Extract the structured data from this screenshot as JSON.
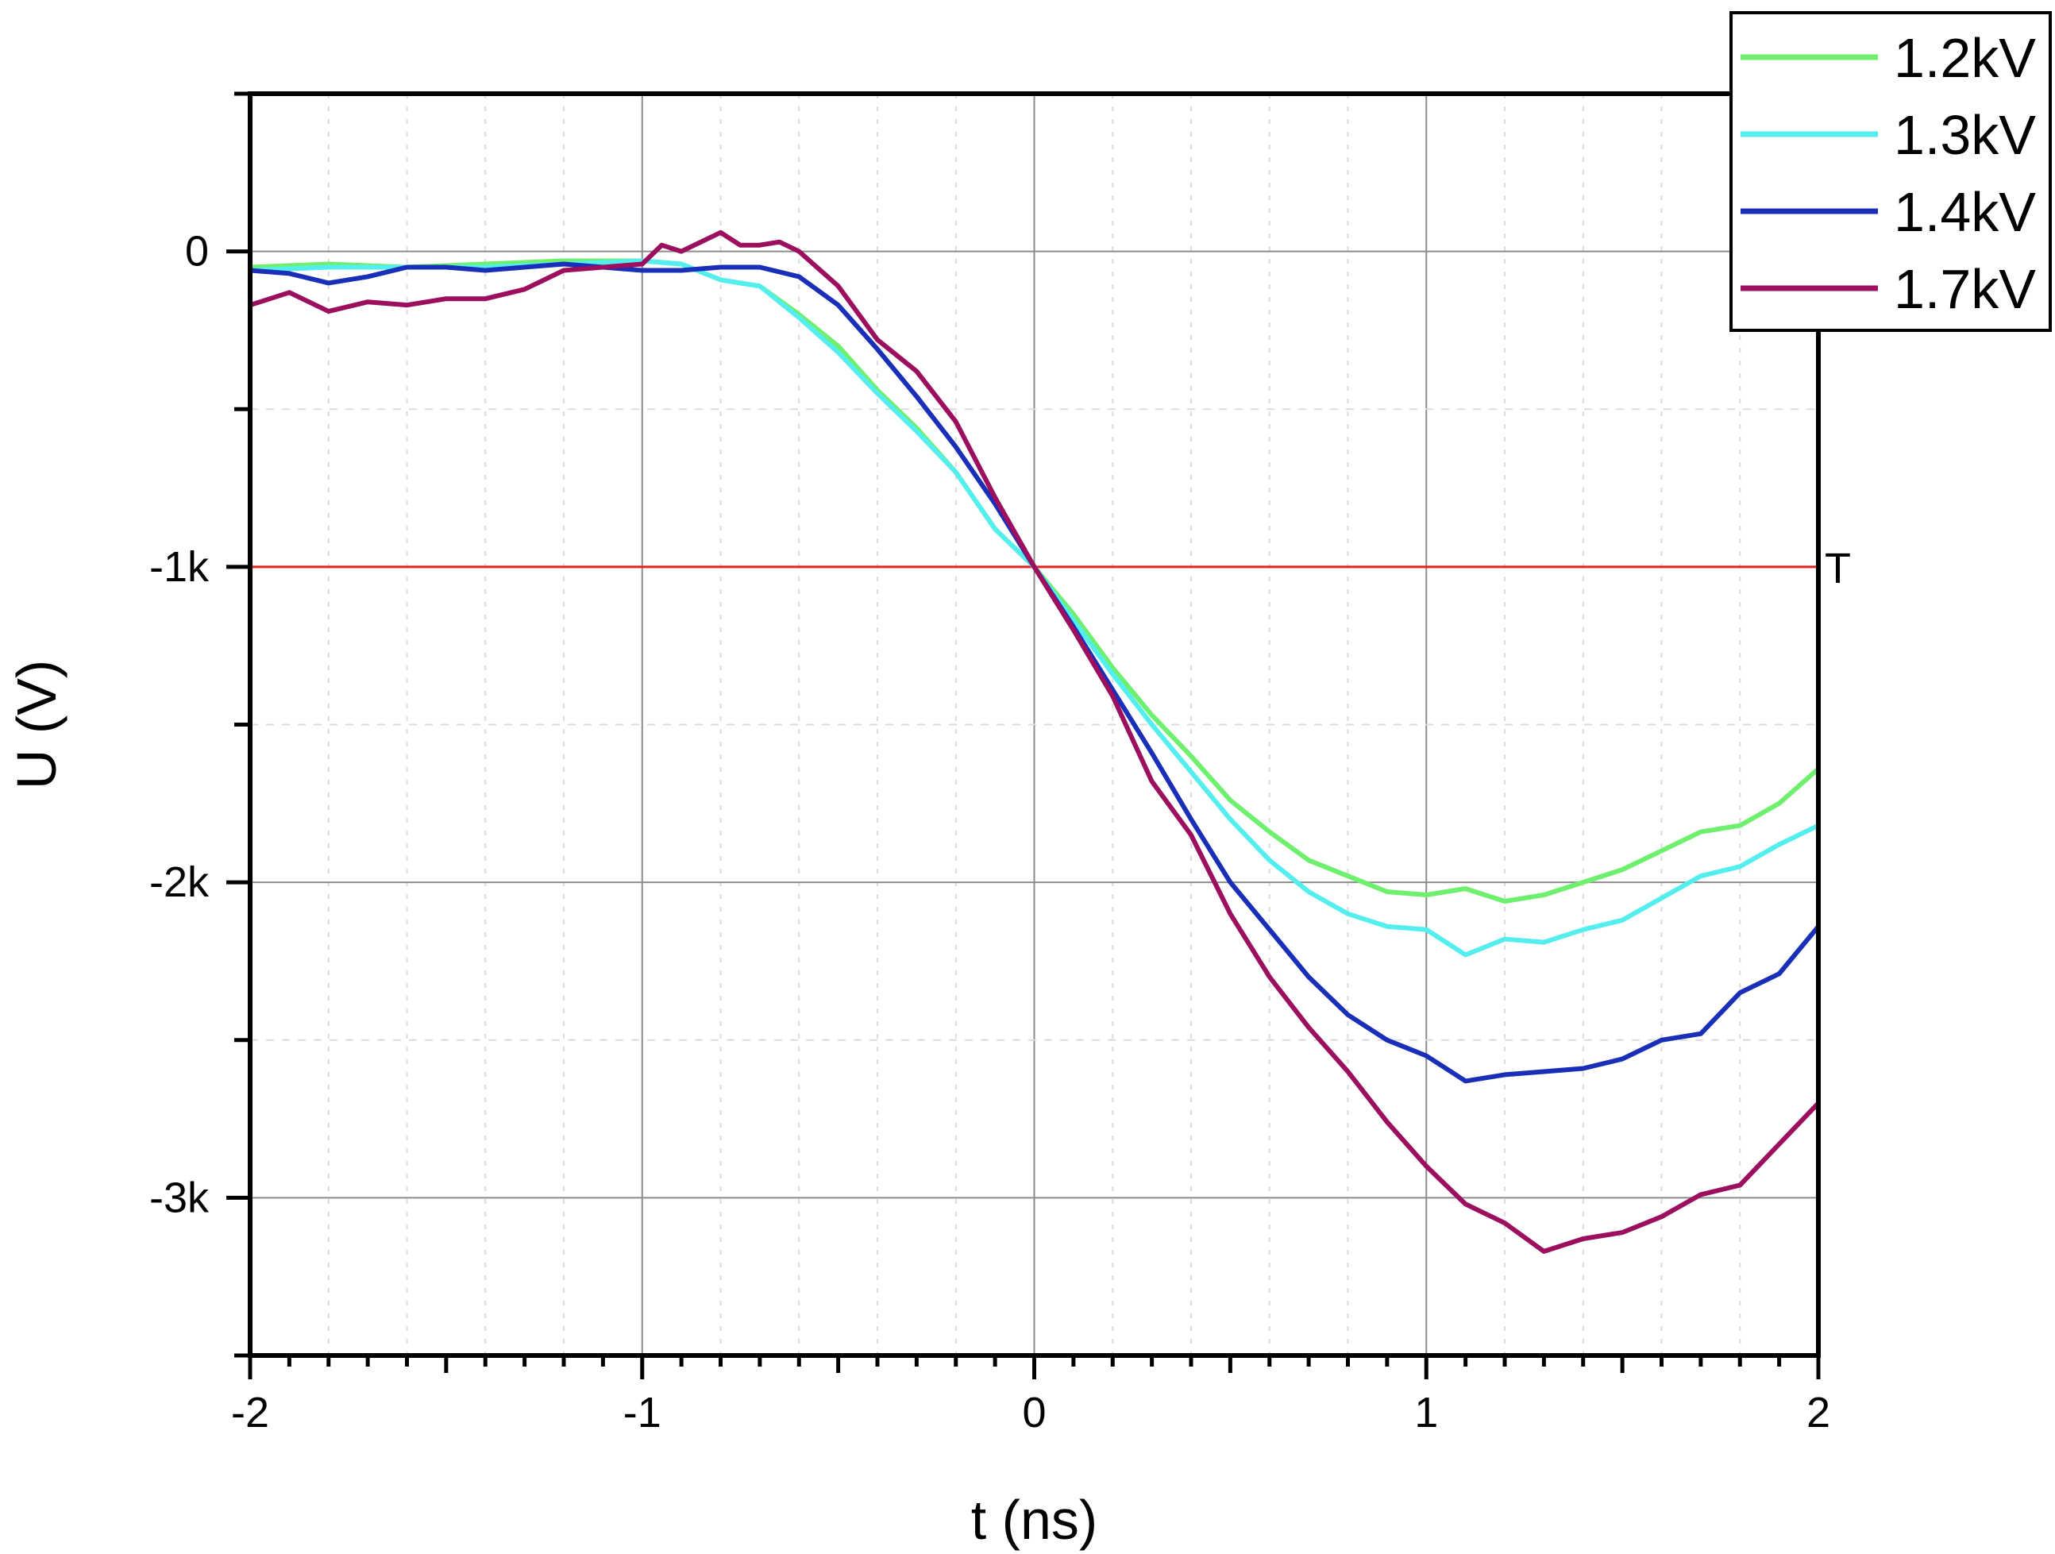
{
  "chart_data": {
    "type": "line",
    "title": "",
    "xlabel": "t (ns)",
    "ylabel": "U (V)",
    "xlim": [
      -2,
      2
    ],
    "ylim": [
      -3500,
      500
    ],
    "x_ticks": [
      -2,
      -1,
      0,
      1,
      2
    ],
    "x_tick_labels": [
      "-2",
      "-1",
      "0",
      "1",
      "2"
    ],
    "y_ticks": [
      0,
      -1000,
      -2000,
      -3000
    ],
    "y_tick_labels": [
      "0",
      "-1k",
      "-2k",
      "-3k"
    ],
    "grid": true,
    "legend_position": "top-right",
    "threshold": {
      "y": -1000,
      "label": "T",
      "color": "#e8231f"
    },
    "series": [
      {
        "name": "1.2kV",
        "color": "#6ef06e",
        "points": [
          [
            -2,
            -50
          ],
          [
            -1.8,
            -40
          ],
          [
            -1.6,
            -50
          ],
          [
            -1.4,
            -40
          ],
          [
            -1.2,
            -30
          ],
          [
            -1.0,
            -30
          ],
          [
            -0.9,
            -40
          ],
          [
            -0.8,
            -90
          ],
          [
            -0.7,
            -110
          ],
          [
            -0.6,
            -200
          ],
          [
            -0.5,
            -300
          ],
          [
            -0.4,
            -440
          ],
          [
            -0.3,
            -560
          ],
          [
            -0.2,
            -700
          ],
          [
            -0.1,
            -880
          ],
          [
            0,
            -1000
          ],
          [
            0.1,
            -1150
          ],
          [
            0.2,
            -1320
          ],
          [
            0.3,
            -1470
          ],
          [
            0.4,
            -1600
          ],
          [
            0.5,
            -1740
          ],
          [
            0.6,
            -1840
          ],
          [
            0.7,
            -1930
          ],
          [
            0.8,
            -1980
          ],
          [
            0.9,
            -2030
          ],
          [
            1.0,
            -2040
          ],
          [
            1.1,
            -2020
          ],
          [
            1.2,
            -2060
          ],
          [
            1.3,
            -2040
          ],
          [
            1.4,
            -2000
          ],
          [
            1.5,
            -1960
          ],
          [
            1.6,
            -1900
          ],
          [
            1.7,
            -1840
          ],
          [
            1.8,
            -1820
          ],
          [
            1.9,
            -1750
          ],
          [
            2.0,
            -1640
          ]
        ]
      },
      {
        "name": "1.3kV",
        "color": "#55eeee",
        "points": [
          [
            -2,
            -60
          ],
          [
            -1.8,
            -50
          ],
          [
            -1.6,
            -50
          ],
          [
            -1.4,
            -50
          ],
          [
            -1.2,
            -40
          ],
          [
            -1.0,
            -30
          ],
          [
            -0.9,
            -40
          ],
          [
            -0.8,
            -90
          ],
          [
            -0.7,
            -110
          ],
          [
            -0.6,
            -210
          ],
          [
            -0.5,
            -320
          ],
          [
            -0.4,
            -450
          ],
          [
            -0.3,
            -570
          ],
          [
            -0.2,
            -700
          ],
          [
            -0.1,
            -880
          ],
          [
            0,
            -1000
          ],
          [
            0.1,
            -1170
          ],
          [
            0.2,
            -1340
          ],
          [
            0.3,
            -1500
          ],
          [
            0.4,
            -1650
          ],
          [
            0.5,
            -1800
          ],
          [
            0.6,
            -1930
          ],
          [
            0.7,
            -2030
          ],
          [
            0.8,
            -2100
          ],
          [
            0.9,
            -2140
          ],
          [
            1.0,
            -2150
          ],
          [
            1.1,
            -2230
          ],
          [
            1.2,
            -2180
          ],
          [
            1.3,
            -2190
          ],
          [
            1.4,
            -2150
          ],
          [
            1.5,
            -2120
          ],
          [
            1.6,
            -2050
          ],
          [
            1.7,
            -1980
          ],
          [
            1.8,
            -1950
          ],
          [
            1.9,
            -1880
          ],
          [
            2.0,
            -1820
          ]
        ]
      },
      {
        "name": "1.4kV",
        "color": "#1a2fb8",
        "points": [
          [
            -2,
            -60
          ],
          [
            -1.9,
            -70
          ],
          [
            -1.8,
            -100
          ],
          [
            -1.7,
            -80
          ],
          [
            -1.6,
            -50
          ],
          [
            -1.5,
            -50
          ],
          [
            -1.4,
            -60
          ],
          [
            -1.3,
            -50
          ],
          [
            -1.2,
            -40
          ],
          [
            -1.1,
            -50
          ],
          [
            -1.0,
            -60
          ],
          [
            -0.9,
            -60
          ],
          [
            -0.8,
            -50
          ],
          [
            -0.7,
            -50
          ],
          [
            -0.6,
            -80
          ],
          [
            -0.5,
            -170
          ],
          [
            -0.4,
            -310
          ],
          [
            -0.3,
            -460
          ],
          [
            -0.2,
            -620
          ],
          [
            -0.1,
            -800
          ],
          [
            0,
            -1000
          ],
          [
            0.1,
            -1190
          ],
          [
            0.2,
            -1390
          ],
          [
            0.3,
            -1590
          ],
          [
            0.4,
            -1800
          ],
          [
            0.5,
            -2000
          ],
          [
            0.6,
            -2150
          ],
          [
            0.7,
            -2300
          ],
          [
            0.8,
            -2420
          ],
          [
            0.9,
            -2500
          ],
          [
            1.0,
            -2550
          ],
          [
            1.1,
            -2630
          ],
          [
            1.2,
            -2610
          ],
          [
            1.3,
            -2600
          ],
          [
            1.4,
            -2590
          ],
          [
            1.5,
            -2560
          ],
          [
            1.6,
            -2500
          ],
          [
            1.7,
            -2480
          ],
          [
            1.8,
            -2350
          ],
          [
            1.9,
            -2290
          ],
          [
            2.0,
            -2140
          ]
        ]
      },
      {
        "name": "1.7kV",
        "color": "#9c0f5f",
        "points": [
          [
            -2,
            -170
          ],
          [
            -1.9,
            -130
          ],
          [
            -1.8,
            -190
          ],
          [
            -1.7,
            -160
          ],
          [
            -1.6,
            -170
          ],
          [
            -1.5,
            -150
          ],
          [
            -1.4,
            -150
          ],
          [
            -1.3,
            -120
          ],
          [
            -1.2,
            -60
          ],
          [
            -1.1,
            -50
          ],
          [
            -1.0,
            -40
          ],
          [
            -0.95,
            20
          ],
          [
            -0.9,
            0
          ],
          [
            -0.8,
            60
          ],
          [
            -0.75,
            20
          ],
          [
            -0.7,
            20
          ],
          [
            -0.65,
            30
          ],
          [
            -0.6,
            0
          ],
          [
            -0.5,
            -110
          ],
          [
            -0.4,
            -280
          ],
          [
            -0.3,
            -380
          ],
          [
            -0.2,
            -540
          ],
          [
            -0.1,
            -780
          ],
          [
            0,
            -1000
          ],
          [
            0.1,
            -1200
          ],
          [
            0.2,
            -1410
          ],
          [
            0.3,
            -1680
          ],
          [
            0.4,
            -1850
          ],
          [
            0.5,
            -2100
          ],
          [
            0.6,
            -2300
          ],
          [
            0.7,
            -2460
          ],
          [
            0.8,
            -2600
          ],
          [
            0.9,
            -2760
          ],
          [
            1.0,
            -2900
          ],
          [
            1.1,
            -3020
          ],
          [
            1.2,
            -3080
          ],
          [
            1.3,
            -3170
          ],
          [
            1.4,
            -3130
          ],
          [
            1.5,
            -3110
          ],
          [
            1.6,
            -3060
          ],
          [
            1.7,
            -2990
          ],
          [
            1.8,
            -2960
          ],
          [
            1.9,
            -2830
          ],
          [
            2.0,
            -2700
          ]
        ]
      }
    ]
  }
}
